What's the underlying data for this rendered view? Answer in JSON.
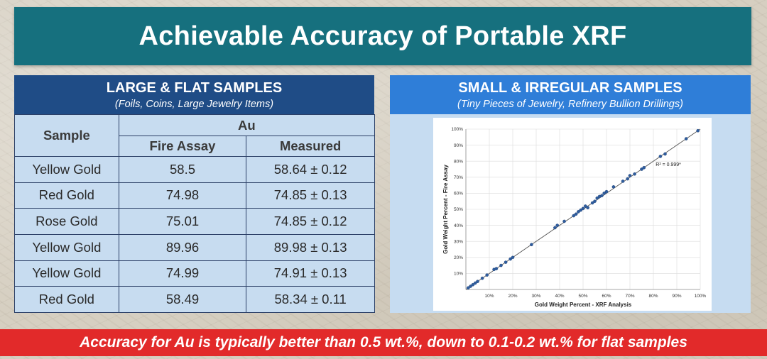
{
  "title": "Achievable Accuracy of Portable XRF",
  "left_panel": {
    "title": "LARGE & FLAT SAMPLES",
    "subtitle": "(Foils, Coins, Large Jewelry Items)",
    "table": {
      "sample_header": "Sample",
      "group_header": "Au",
      "col_headers": [
        "Fire Assay",
        "Measured"
      ],
      "rows": [
        [
          "Yellow Gold",
          "58.5",
          "58.64 ± 0.12"
        ],
        [
          "Red Gold",
          "74.98",
          "74.85 ± 0.13"
        ],
        [
          "Rose Gold",
          "75.01",
          "74.85 ± 0.12"
        ],
        [
          "Yellow Gold",
          "89.96",
          "89.98 ± 0.13"
        ],
        [
          "Yellow Gold",
          "74.99",
          "74.91 ± 0.13"
        ],
        [
          "Red Gold",
          "58.49",
          "58.34 ± 0.11"
        ]
      ]
    }
  },
  "right_panel": {
    "title": "SMALL & IRREGULAR SAMPLES",
    "subtitle": "(Tiny Pieces of Jewelry, Refinery Bullion Drillings)"
  },
  "chart_data": {
    "type": "scatter",
    "xlabel": "Gold Weight Percent - XRF Analysis",
    "ylabel": "Gold Weight Percent - Fire Assay",
    "annotation": "R² = 0.999*",
    "x_ticks": [
      "10%",
      "20%",
      "30%",
      "40%",
      "50%",
      "60%",
      "70%",
      "80%",
      "90%",
      "100%"
    ],
    "y_ticks": [
      "10%",
      "20%",
      "30%",
      "40%",
      "50%",
      "60%",
      "70%",
      "80%",
      "90%",
      "100%"
    ],
    "xlim": [
      0,
      100
    ],
    "ylim": [
      0,
      100
    ],
    "grid": true,
    "trendline": [
      [
        0,
        0
      ],
      [
        100,
        100
      ]
    ],
    "points": [
      [
        1,
        1
      ],
      [
        2,
        2
      ],
      [
        3,
        3
      ],
      [
        4,
        4
      ],
      [
        5,
        5
      ],
      [
        7,
        7
      ],
      [
        9,
        9
      ],
      [
        12,
        12.5
      ],
      [
        13,
        13
      ],
      [
        15,
        15
      ],
      [
        17,
        17
      ],
      [
        19,
        19
      ],
      [
        20,
        20
      ],
      [
        28,
        28
      ],
      [
        38,
        38.5
      ],
      [
        39,
        40
      ],
      [
        42,
        42.5
      ],
      [
        46,
        46
      ],
      [
        47,
        47
      ],
      [
        48,
        48.5
      ],
      [
        49,
        49.5
      ],
      [
        50,
        50.5
      ],
      [
        51,
        52
      ],
      [
        52,
        51
      ],
      [
        54,
        54
      ],
      [
        55,
        55
      ],
      [
        56,
        57
      ],
      [
        57,
        58
      ],
      [
        58,
        58.5
      ],
      [
        59,
        60
      ],
      [
        60,
        61
      ],
      [
        63,
        64
      ],
      [
        67,
        67.5
      ],
      [
        69,
        69
      ],
      [
        70,
        71
      ],
      [
        72,
        72
      ],
      [
        75,
        75
      ],
      [
        76,
        76
      ],
      [
        83,
        83
      ],
      [
        85,
        84.5
      ],
      [
        94,
        94
      ],
      [
        99,
        99
      ]
    ]
  },
  "footer": "Accuracy for Au is typically better than 0.5 wt.%, down to 0.1-0.2 wt.% for flat samples",
  "colors": {
    "title_banner": "#16707e",
    "left_header": "#1f4c86",
    "right_header": "#2f7ed8",
    "table_fill": "#c7dcf0",
    "footer": "#e22a2a",
    "points": "#2f5d9e"
  }
}
